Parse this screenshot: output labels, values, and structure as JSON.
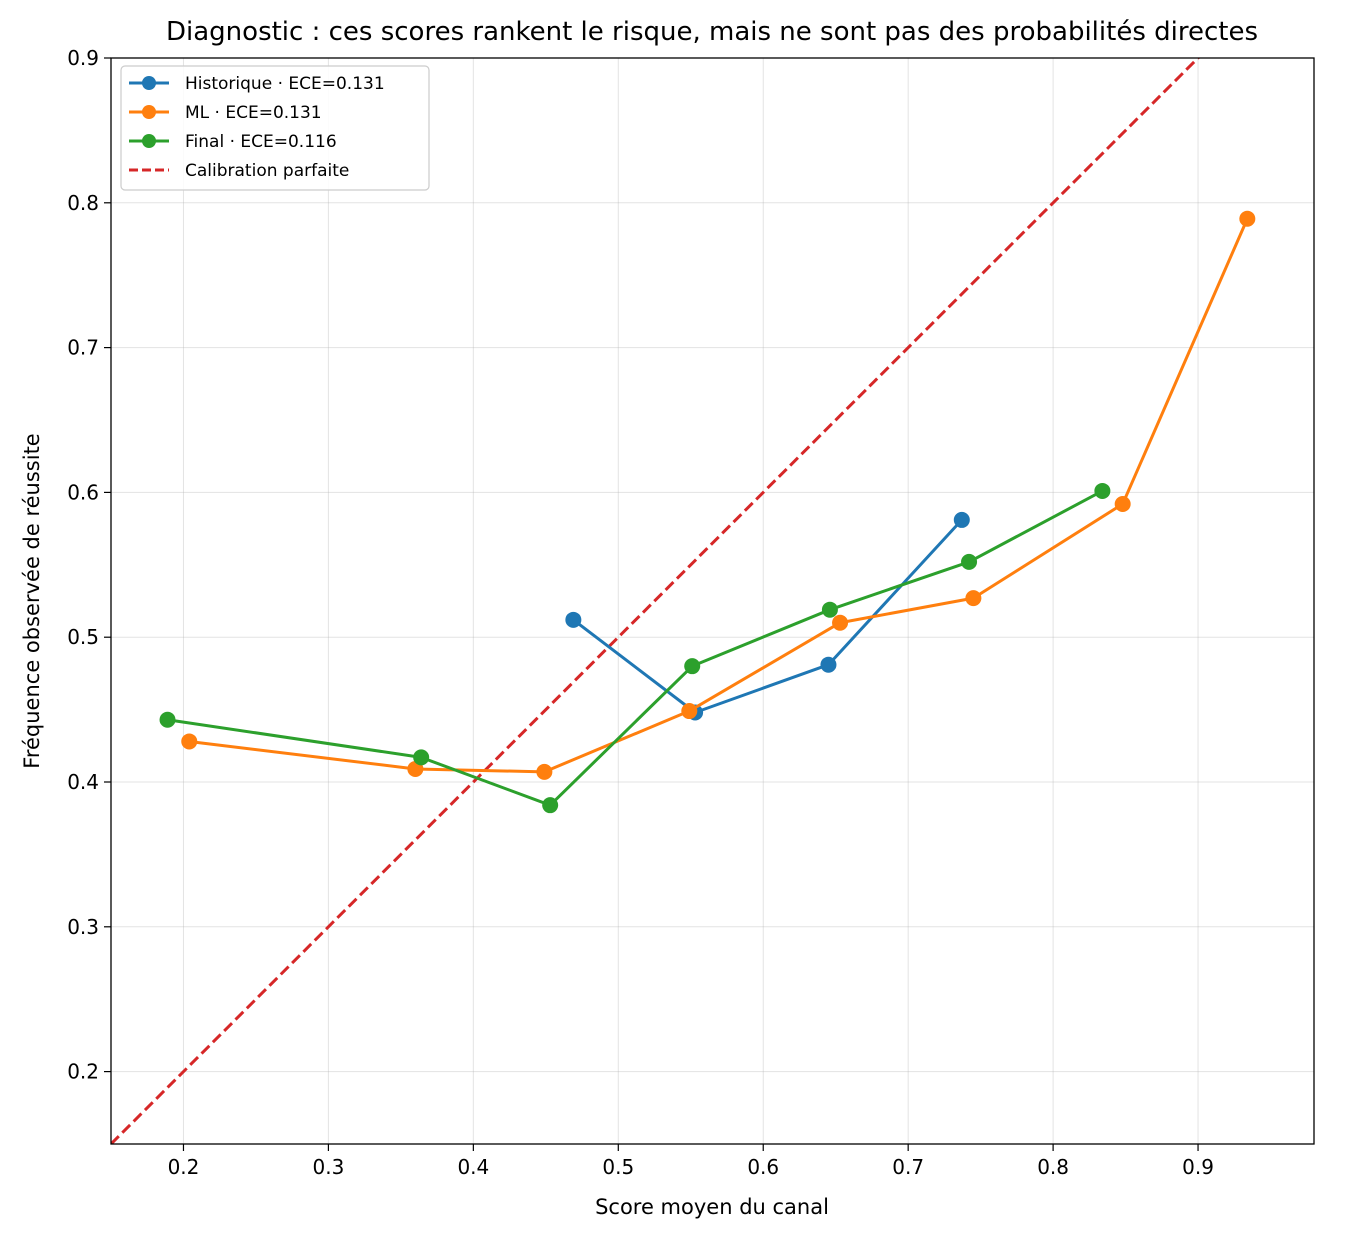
{
  "chart_data": {
    "type": "line",
    "title": "Diagnostic : ces scores rankent le risque, mais ne sont pas des probabilités directes",
    "xlabel": "Score moyen du canal",
    "ylabel": "Fréquence observée de réussite",
    "xlim": [
      0.15,
      0.98
    ],
    "ylim": [
      0.15,
      0.9
    ],
    "x_ticks": [
      0.2,
      0.3,
      0.4,
      0.5,
      0.6,
      0.7,
      0.8,
      0.9
    ],
    "x_tick_labels": [
      "0.2",
      "0.3",
      "0.4",
      "0.5",
      "0.6",
      "0.7",
      "0.8",
      "0.9"
    ],
    "y_ticks": [
      0.2,
      0.3,
      0.4,
      0.5,
      0.6,
      0.7,
      0.8,
      0.9
    ],
    "y_tick_labels": [
      "0.2",
      "0.3",
      "0.4",
      "0.5",
      "0.6",
      "0.7",
      "0.8",
      "0.9"
    ],
    "grid": true,
    "legend_position": "top-left",
    "series": [
      {
        "name": "Historique · ECE=0.131",
        "color": "#1f77b4",
        "marker": "circle",
        "x": [
          0.469,
          0.553,
          0.645,
          0.737
        ],
        "y": [
          0.512,
          0.448,
          0.481,
          0.581
        ]
      },
      {
        "name": "ML · ECE=0.131",
        "color": "#ff7f0e",
        "marker": "circle",
        "x": [
          0.204,
          0.36,
          0.449,
          0.549,
          0.653,
          0.745,
          0.848,
          0.934
        ],
        "y": [
          0.428,
          0.409,
          0.407,
          0.449,
          0.51,
          0.527,
          0.592,
          0.789
        ]
      },
      {
        "name": "Final · ECE=0.116",
        "color": "#2ca02c",
        "marker": "circle",
        "x": [
          0.189,
          0.364,
          0.453,
          0.551,
          0.646,
          0.742,
          0.834
        ],
        "y": [
          0.443,
          0.417,
          0.384,
          0.48,
          0.519,
          0.552,
          0.601
        ]
      }
    ],
    "reference_line": {
      "name": "Calibration parfaite",
      "color": "#d62728",
      "style": "dashed",
      "x": [
        0.15,
        0.98
      ],
      "y": [
        0.15,
        0.98
      ]
    }
  }
}
